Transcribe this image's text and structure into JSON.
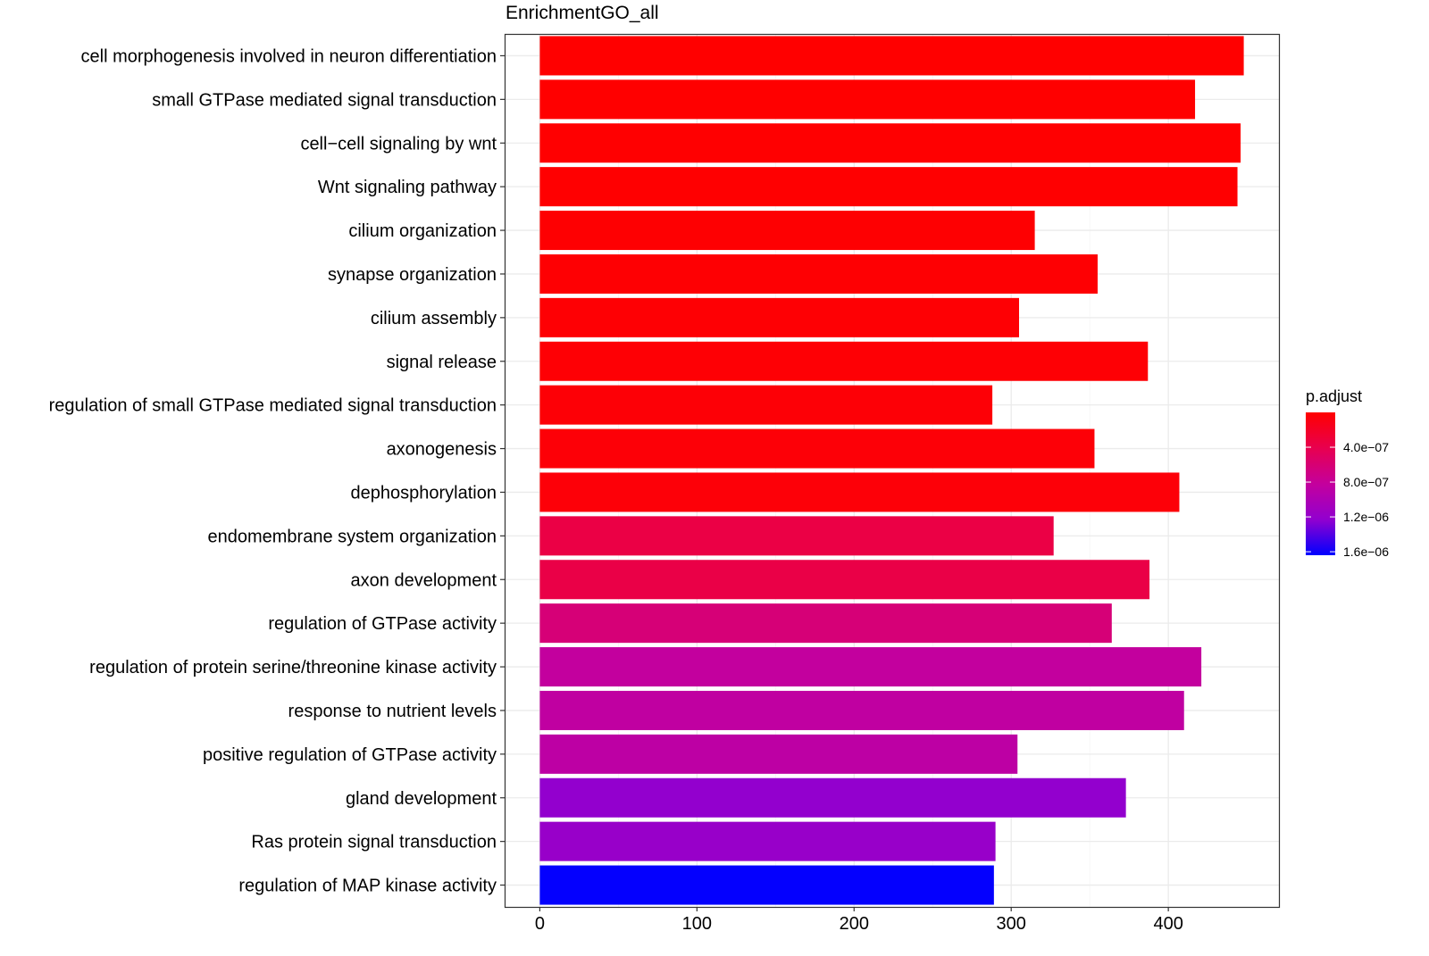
{
  "chart_data": {
    "type": "bar",
    "orientation": "horizontal",
    "title": "EnrichmentGO_all",
    "xlabel": "",
    "ylabel": "",
    "xlim": [
      -22.4,
      470.4
    ],
    "xticks": [
      0,
      100,
      200,
      300,
      400
    ],
    "xtick_labels": [
      "0",
      "100",
      "200",
      "300",
      "400"
    ],
    "grid": true,
    "categories": [
      "cell morphogenesis involved in neuron differentiation",
      "small GTPase mediated signal transduction",
      "cell−cell signaling by wnt",
      "Wnt signaling pathway",
      "cilium organization",
      "synapse organization",
      "cilium assembly",
      "signal release",
      "regulation of small GTPase mediated signal transduction",
      "axonogenesis",
      "dephosphorylation",
      "endomembrane system organization",
      "axon development",
      "regulation of GTPase activity",
      "regulation of protein serine/threonine kinase activity",
      "response to nutrient levels",
      "positive regulation of GTPase activity",
      "gland development",
      "Ras protein signal transduction",
      "regulation of MAP kinase activity"
    ],
    "values": [
      448,
      417,
      446,
      444,
      315,
      355,
      305,
      387,
      288,
      353,
      407,
      327,
      388,
      364,
      421,
      410,
      304,
      373,
      290,
      289
    ],
    "color_values": [
      1e-09,
      2e-09,
      3e-09,
      4e-09,
      1e-08,
      1.5e-08,
      2e-08,
      2.5e-08,
      3e-08,
      3.5e-08,
      4e-08,
      3.6e-07,
      3.7e-07,
      6.2e-07,
      8.3e-07,
      8.5e-07,
      8.8e-07,
      1.22e-06,
      1.18e-06,
      1.63e-06
    ],
    "legend": {
      "title": "p.adjust",
      "placement": "right",
      "range": [
        0,
        1.64e-06
      ],
      "ticks": [
        4e-07,
        8e-07,
        1.2e-06,
        1.6e-06
      ],
      "tick_labels": [
        "4.0e−07",
        "8.0e−07",
        "1.2e−06",
        "1.6e−06"
      ],
      "low_color": "#FF0000",
      "high_color": "#0000FF"
    }
  }
}
